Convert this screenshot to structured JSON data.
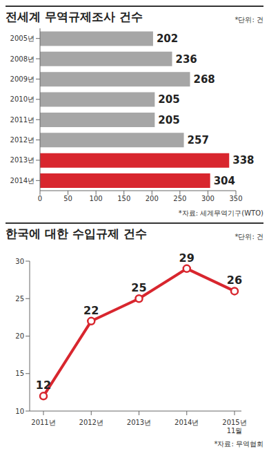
{
  "chart_data": [
    {
      "type": "bar",
      "title": "전세계 무역규제조사 건수",
      "unit_label": "*단위: 건",
      "source": "*자료: 세계무역기구(WTO)",
      "orientation": "horizontal",
      "categories": [
        "2005년",
        "2008년",
        "2009년",
        "2010년",
        "2011년",
        "2012년",
        "2013년",
        "2014년"
      ],
      "values": [
        202,
        236,
        268,
        205,
        205,
        257,
        338,
        304
      ],
      "colors": [
        "#a6a6a6",
        "#a6a6a6",
        "#a6a6a6",
        "#a6a6a6",
        "#a6a6a6",
        "#a6a6a6",
        "#d8262e",
        "#d8262e"
      ],
      "xlim": [
        0,
        350
      ],
      "xticks": [
        0,
        50,
        100,
        150,
        200,
        250,
        300,
        350
      ],
      "grid": false,
      "data_labels": true
    },
    {
      "type": "line",
      "title": "한국에 대한 수입규제 건수",
      "unit_label": "*단위: 건",
      "source": "*자료: 무역협회",
      "categories": [
        "2011년",
        "2012년",
        "2013년",
        "2014년",
        "2015년 11월"
      ],
      "values": [
        12,
        22,
        25,
        29,
        26
      ],
      "color": "#d8262e",
      "marker": "circle",
      "ylim": [
        10,
        30
      ],
      "yticks": [
        10,
        15,
        20,
        25,
        30
      ],
      "grid": false,
      "data_labels": true
    }
  ]
}
